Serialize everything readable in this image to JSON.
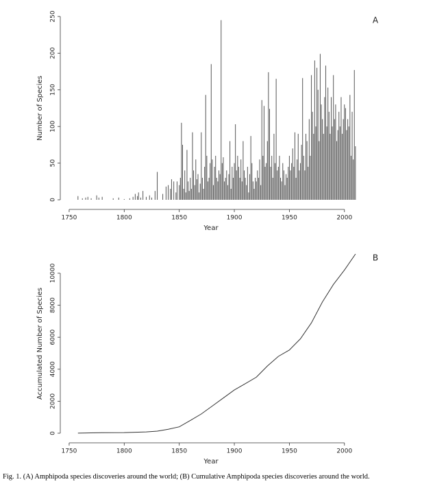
{
  "chart_data": [
    {
      "type": "bar",
      "panel": "A",
      "xlabel": "Year",
      "ylabel": "Number of Species",
      "color": "#555555",
      "x": [
        1758,
        1762,
        1765,
        1767,
        1770,
        1775,
        1777,
        1780,
        1790,
        1795,
        1800,
        1805,
        1808,
        1810,
        1812,
        1813,
        1815,
        1817,
        1820,
        1823,
        1825,
        1828,
        1830,
        1835,
        1838,
        1840,
        1842,
        1843,
        1845,
        1847,
        1848,
        1850,
        1851,
        1852,
        1853,
        1854,
        1855,
        1856,
        1857,
        1858,
        1859,
        1860,
        1861,
        1862,
        1863,
        1864,
        1865,
        1866,
        1867,
        1868,
        1869,
        1870,
        1871,
        1872,
        1873,
        1874,
        1875,
        1876,
        1877,
        1878,
        1879,
        1880,
        1881,
        1882,
        1883,
        1884,
        1885,
        1886,
        1887,
        1888,
        1889,
        1890,
        1891,
        1892,
        1893,
        1894,
        1895,
        1896,
        1897,
        1898,
        1899,
        1900,
        1901,
        1902,
        1903,
        1904,
        1905,
        1906,
        1907,
        1908,
        1909,
        1910,
        1911,
        1912,
        1913,
        1914,
        1915,
        1916,
        1917,
        1918,
        1919,
        1920,
        1921,
        1922,
        1923,
        1924,
        1925,
        1926,
        1927,
        1928,
        1929,
        1930,
        1931,
        1932,
        1933,
        1934,
        1935,
        1936,
        1937,
        1938,
        1939,
        1940,
        1941,
        1942,
        1943,
        1944,
        1945,
        1946,
        1947,
        1948,
        1949,
        1950,
        1951,
        1952,
        1953,
        1954,
        1955,
        1956,
        1957,
        1958,
        1959,
        1960,
        1961,
        1962,
        1963,
        1964,
        1965,
        1966,
        1967,
        1968,
        1969,
        1970,
        1971,
        1972,
        1973,
        1974,
        1975,
        1976,
        1977,
        1978,
        1979,
        1980,
        1981,
        1982,
        1983,
        1984,
        1985,
        1986,
        1987,
        1988,
        1989,
        1990,
        1991,
        1992,
        1993,
        1994,
        1995,
        1996,
        1997,
        1998,
        1999,
        2000,
        2001,
        2002,
        2003,
        2004,
        2005,
        2006,
        2007,
        2008,
        2009,
        2010
      ],
      "values": [
        5,
        2,
        3,
        4,
        2,
        6,
        3,
        4,
        2,
        3,
        1,
        2,
        4,
        8,
        5,
        10,
        3,
        12,
        4,
        6,
        3,
        12,
        38,
        8,
        18,
        20,
        15,
        28,
        25,
        10,
        25,
        20,
        30,
        105,
        75,
        15,
        40,
        10,
        68,
        25,
        12,
        30,
        15,
        92,
        40,
        20,
        55,
        28,
        35,
        10,
        22,
        92,
        30,
        15,
        45,
        143,
        60,
        25,
        30,
        50,
        185,
        55,
        20,
        45,
        60,
        30,
        25,
        40,
        35,
        245,
        50,
        58,
        25,
        30,
        40,
        20,
        35,
        80,
        15,
        45,
        30,
        50,
        103,
        40,
        60,
        45,
        30,
        55,
        25,
        80,
        40,
        30,
        20,
        45,
        10,
        35,
        87,
        50,
        25,
        15,
        30,
        25,
        40,
        30,
        55,
        20,
        136,
        60,
        128,
        45,
        50,
        80,
        174,
        124,
        45,
        60,
        30,
        90,
        50,
        165,
        40,
        45,
        60,
        30,
        25,
        50,
        40,
        20,
        35,
        30,
        45,
        60,
        40,
        50,
        70,
        45,
        92,
        30,
        55,
        90,
        40,
        50,
        75,
        166,
        60,
        40,
        90,
        80,
        45,
        110,
        60,
        170,
        120,
        90,
        190,
        100,
        180,
        150,
        80,
        199,
        130,
        110,
        90,
        140,
        183,
        100,
        153,
        120,
        90,
        140,
        100,
        170,
        110,
        130,
        80,
        95,
        120,
        100,
        140,
        90,
        110,
        130,
        125,
        95,
        110,
        100,
        143,
        60,
        120,
        55,
        177,
        73
      ],
      "xlim": [
        1743,
        2030
      ],
      "xticks": [
        1750,
        1800,
        1850,
        1900,
        1950,
        2000
      ],
      "ylim": [
        0,
        250
      ],
      "yticks": [
        0,
        50,
        100,
        150,
        200,
        250
      ]
    },
    {
      "type": "line",
      "panel": "B",
      "xlabel": "Year",
      "ylabel": "Accumulated Number of Species",
      "color": "#333333",
      "x": [
        1758,
        1770,
        1780,
        1800,
        1820,
        1830,
        1840,
        1850,
        1860,
        1870,
        1880,
        1890,
        1900,
        1910,
        1920,
        1930,
        1940,
        1950,
        1960,
        1970,
        1980,
        1990,
        2000,
        2010
      ],
      "values": [
        5,
        20,
        30,
        40,
        80,
        130,
        250,
        400,
        800,
        1200,
        1700,
        2200,
        2700,
        3100,
        3500,
        4200,
        4800,
        5200,
        5900,
        6900,
        8200,
        9300,
        10200,
        11200
      ],
      "xlim": [
        1743,
        2030
      ],
      "xticks": [
        1750,
        1800,
        1850,
        1900,
        1950,
        2000
      ],
      "ylim": [
        0,
        11200
      ],
      "yticks": [
        0,
        2000,
        4000,
        6000,
        8000,
        10000
      ]
    }
  ],
  "caption": "Fig. 1. (A) Amphipoda species discoveries around the world; (B) Cumulative Amphipoda species discoveries around the world."
}
